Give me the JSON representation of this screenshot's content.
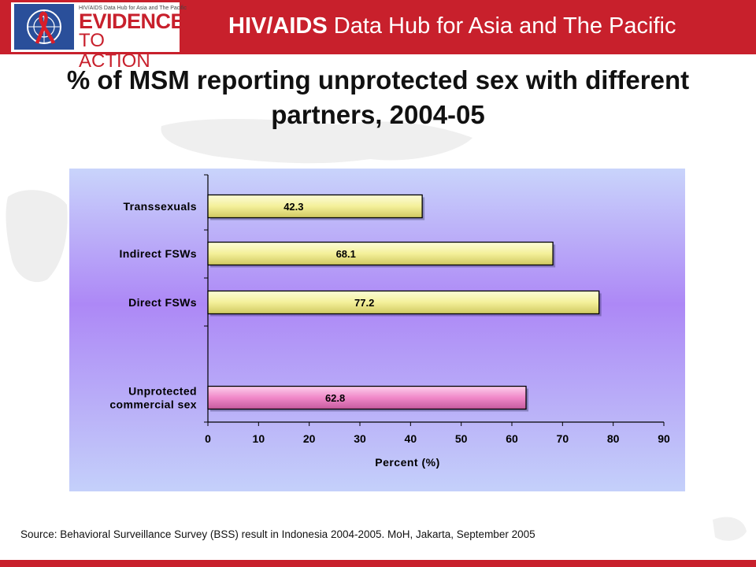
{
  "header": {
    "logo_top": "HIV/AIDS Data Hub for Asia and The Pacific",
    "logo_line1": "EVIDENCE",
    "logo_line2": "TO ACTION",
    "hub_title_bold": "HIV/AIDS",
    "hub_title_rest": " Data Hub for Asia and The Pacific"
  },
  "slide_title": "% of MSM reporting unprotected sex with different partners, 2004-05",
  "source": "Source: Behavioral Surveillance Survey (BSS) result in Indonesia 2004-2005. MoH, Jakarta, September 2005",
  "colors": {
    "brand_red": "#c8202c",
    "bar_yellow": "#f6f3a0",
    "bar_pink": "#f088c8"
  },
  "chart_data": {
    "type": "bar",
    "orientation": "horizontal",
    "categories": [
      "Transsexuals",
      "Indirect FSWs",
      "Direct FSWs",
      "Unprotected commercial sex"
    ],
    "category_lines": [
      [
        "Transsexuals"
      ],
      [
        "Indirect FSWs"
      ],
      [
        "Direct FSWs"
      ],
      [
        "Unprotected",
        "commercial sex"
      ]
    ],
    "values": [
      42.3,
      68.1,
      77.2,
      62.8
    ],
    "value_labels": [
      "42.3",
      "68.1",
      "77.2",
      "62.8"
    ],
    "bar_colors": [
      "#f6f3a0",
      "#f6f3a0",
      "#f6f3a0",
      "#f088c8"
    ],
    "xlabel": "Percent (%)",
    "ylabel": "",
    "xlim": [
      0,
      90
    ],
    "xticks": [
      0,
      10,
      20,
      30,
      40,
      50,
      60,
      70,
      80,
      90
    ],
    "grid": false,
    "legend": "none"
  }
}
